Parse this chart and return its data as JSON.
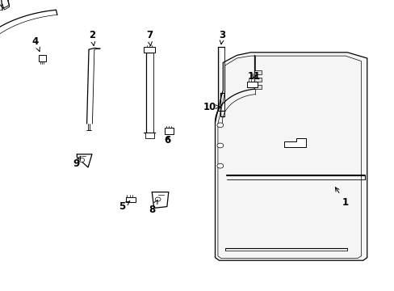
{
  "bg_color": "#ffffff",
  "line_color": "#000000",
  "figsize": [
    4.89,
    3.6
  ],
  "dpi": 100,
  "labels": {
    "1": [
      0.875,
      0.305,
      0.84,
      0.36
    ],
    "2": [
      0.235,
      0.875,
      0.24,
      0.835
    ],
    "3": [
      0.565,
      0.875,
      0.555,
      0.845
    ],
    "4": [
      0.092,
      0.855,
      0.105,
      0.808
    ],
    "5": [
      0.315,
      0.295,
      0.345,
      0.308
    ],
    "6": [
      0.425,
      0.52,
      0.425,
      0.545
    ],
    "7": [
      0.38,
      0.875,
      0.385,
      0.835
    ],
    "8": [
      0.385,
      0.285,
      0.398,
      0.32
    ],
    "9": [
      0.195,
      0.44,
      0.205,
      0.475
    ],
    "10": [
      0.535,
      0.635,
      0.56,
      0.635
    ],
    "11": [
      0.645,
      0.735,
      0.635,
      0.71
    ]
  }
}
